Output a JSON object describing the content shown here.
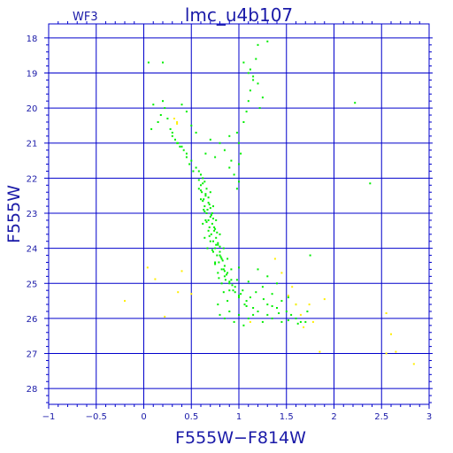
{
  "chart_data": {
    "type": "scatter",
    "title": "lmc_u4b107",
    "subtitle": "WF3",
    "xlabel": "F555W−F814W",
    "ylabel": "F555W",
    "xlim": [
      -1,
      3
    ],
    "ylim": [
      28.45,
      17.6
    ],
    "y_inverted": true,
    "grid": true,
    "x_ticks": [
      {
        "value": -1,
        "label": "−1"
      },
      {
        "value": -0.5,
        "label": "−0.5"
      },
      {
        "value": 0,
        "label": "0"
      },
      {
        "value": 0.5,
        "label": "0.5"
      },
      {
        "value": 1,
        "label": "1"
      },
      {
        "value": 1.5,
        "label": "1.5"
      },
      {
        "value": 2,
        "label": "2"
      },
      {
        "value": 2.5,
        "label": "2.5"
      },
      {
        "value": 3,
        "label": "3"
      }
    ],
    "y_ticks": [
      {
        "value": 18,
        "label": "18"
      },
      {
        "value": 19,
        "label": "19"
      },
      {
        "value": 20,
        "label": "20"
      },
      {
        "value": 21,
        "label": "21"
      },
      {
        "value": 22,
        "label": "22"
      },
      {
        "value": 23,
        "label": "23"
      },
      {
        "value": 24,
        "label": "24"
      },
      {
        "value": 25,
        "label": "25"
      },
      {
        "value": 26,
        "label": "26"
      },
      {
        "value": 27,
        "label": "27"
      },
      {
        "value": 28,
        "label": "28"
      }
    ],
    "colors": {
      "frame": "#0000cc",
      "grid": "#0000cc",
      "text": "#1a1aa8",
      "main": "#00ee00",
      "outlier": "#ffee00"
    },
    "series": [
      {
        "color_key": "main",
        "points": [
          [
            0.62,
            22.0
          ],
          [
            0.64,
            22.1
          ],
          [
            0.6,
            22.2
          ],
          [
            0.66,
            22.3
          ],
          [
            0.61,
            22.4
          ],
          [
            0.65,
            22.5
          ],
          [
            0.63,
            22.6
          ],
          [
            0.68,
            22.7
          ],
          [
            0.64,
            22.8
          ],
          [
            0.67,
            22.9
          ],
          [
            0.66,
            23.0
          ],
          [
            0.7,
            23.1
          ],
          [
            0.68,
            23.2
          ],
          [
            0.72,
            23.3
          ],
          [
            0.69,
            23.4
          ],
          [
            0.74,
            23.5
          ],
          [
            0.71,
            23.6
          ],
          [
            0.76,
            23.7
          ],
          [
            0.73,
            23.8
          ],
          [
            0.78,
            23.9
          ],
          [
            0.75,
            24.0
          ],
          [
            0.8,
            24.1
          ],
          [
            0.77,
            24.2
          ],
          [
            0.82,
            24.3
          ],
          [
            0.79,
            24.4
          ],
          [
            0.85,
            24.5
          ],
          [
            0.82,
            24.6
          ],
          [
            0.88,
            24.7
          ],
          [
            0.85,
            24.8
          ],
          [
            0.92,
            24.9
          ],
          [
            0.9,
            25.0
          ],
          [
            0.96,
            25.1
          ],
          [
            0.94,
            25.2
          ],
          [
            1.02,
            25.3
          ],
          [
            1.0,
            25.4
          ],
          [
            1.08,
            25.5
          ],
          [
            1.06,
            25.6
          ],
          [
            1.15,
            25.7
          ],
          [
            1.2,
            25.8
          ],
          [
            1.3,
            25.9
          ],
          [
            0.58,
            22.3
          ],
          [
            0.6,
            22.6
          ],
          [
            0.63,
            22.9
          ],
          [
            0.65,
            23.2
          ],
          [
            0.68,
            23.5
          ],
          [
            0.7,
            23.8
          ],
          [
            0.73,
            24.1
          ],
          [
            0.75,
            24.4
          ],
          [
            0.78,
            24.7
          ],
          [
            0.82,
            25.0
          ],
          [
            0.7,
            22.4
          ],
          [
            0.73,
            22.8
          ],
          [
            0.76,
            23.2
          ],
          [
            0.8,
            23.6
          ],
          [
            0.84,
            24.0
          ],
          [
            0.88,
            24.3
          ],
          [
            0.92,
            24.6
          ],
          [
            0.98,
            24.9
          ],
          [
            1.04,
            25.2
          ],
          [
            1.12,
            25.4
          ],
          [
            0.55,
            21.7
          ],
          [
            0.5,
            21.5
          ],
          [
            0.45,
            21.3
          ],
          [
            0.4,
            21.1
          ],
          [
            0.35,
            21.0
          ],
          [
            0.3,
            20.8
          ],
          [
            0.28,
            20.6
          ],
          [
            0.25,
            20.3
          ],
          [
            0.22,
            20.0
          ],
          [
            0.2,
            19.8
          ],
          [
            0.52,
            21.8
          ],
          [
            0.48,
            21.6
          ],
          [
            0.42,
            21.2
          ],
          [
            0.38,
            21.1
          ],
          [
            0.33,
            20.9
          ],
          [
            0.6,
            21.9
          ],
          [
            0.58,
            21.8
          ],
          [
            0.45,
            21.4
          ],
          [
            0.36,
            21.0
          ],
          [
            0.3,
            20.7
          ],
          [
            0.95,
            21.9
          ],
          [
            1.0,
            21.6
          ],
          [
            1.02,
            21.3
          ],
          [
            1.0,
            21.0
          ],
          [
            0.98,
            20.7
          ],
          [
            1.05,
            20.4
          ],
          [
            1.08,
            20.1
          ],
          [
            1.1,
            19.8
          ],
          [
            1.12,
            19.5
          ],
          [
            1.15,
            19.2
          ],
          [
            1.1,
            19.0
          ],
          [
            1.15,
            19.1
          ],
          [
            1.2,
            19.3
          ],
          [
            1.18,
            18.6
          ],
          [
            1.12,
            18.9
          ],
          [
            1.22,
            20.0
          ],
          [
            1.25,
            19.7
          ],
          [
            1.3,
            18.1
          ],
          [
            1.2,
            18.2
          ],
          [
            1.05,
            18.7
          ],
          [
            0.9,
            21.7
          ],
          [
            0.92,
            21.5
          ],
          [
            0.85,
            21.2
          ],
          [
            0.8,
            21.0
          ],
          [
            0.75,
            21.4
          ],
          [
            0.7,
            20.9
          ],
          [
            0.65,
            21.3
          ],
          [
            0.9,
            20.8
          ],
          [
            1.0,
            22.1
          ],
          [
            0.98,
            22.3
          ],
          [
            0.05,
            18.7
          ],
          [
            0.2,
            18.7
          ],
          [
            0.1,
            19.9
          ],
          [
            0.18,
            20.2
          ],
          [
            0.15,
            20.4
          ],
          [
            0.08,
            20.6
          ],
          [
            0.4,
            19.9
          ],
          [
            0.45,
            20.1
          ],
          [
            0.55,
            20.7
          ],
          [
            0.5,
            20.5
          ],
          [
            1.3,
            25.6
          ],
          [
            1.4,
            25.7
          ],
          [
            1.5,
            25.8
          ],
          [
            1.55,
            25.9
          ],
          [
            1.6,
            26.0
          ],
          [
            1.65,
            26.1
          ],
          [
            1.7,
            26.1
          ],
          [
            1.35,
            26.0
          ],
          [
            1.45,
            26.1
          ],
          [
            1.25,
            26.1
          ],
          [
            1.0,
            25.9
          ],
          [
            0.9,
            25.8
          ],
          [
            0.85,
            26.0
          ],
          [
            0.95,
            26.1
          ],
          [
            1.1,
            26.0
          ],
          [
            0.8,
            25.9
          ],
          [
            0.78,
            25.6
          ],
          [
            0.88,
            25.5
          ],
          [
            1.15,
            25.9
          ],
          [
            1.05,
            26.2
          ],
          [
            1.2,
            24.6
          ],
          [
            1.3,
            24.8
          ],
          [
            1.4,
            25.0
          ],
          [
            1.25,
            25.1
          ],
          [
            1.35,
            25.3
          ],
          [
            1.75,
            24.2
          ],
          [
            1.45,
            25.5
          ],
          [
            1.52,
            25.4
          ],
          [
            1.6,
            25.6
          ],
          [
            1.72,
            25.8
          ],
          [
            0.72,
            23.0
          ],
          [
            0.74,
            23.4
          ],
          [
            0.76,
            23.9
          ],
          [
            0.8,
            24.2
          ],
          [
            0.84,
            24.6
          ],
          [
            0.86,
            24.9
          ],
          [
            0.9,
            25.2
          ],
          [
            0.62,
            23.3
          ],
          [
            0.64,
            23.7
          ],
          [
            0.67,
            24.0
          ],
          [
            0.62,
            22.15
          ],
          [
            0.65,
            22.45
          ],
          [
            0.69,
            22.75
          ],
          [
            0.71,
            23.05
          ],
          [
            0.75,
            23.45
          ],
          [
            0.78,
            23.85
          ],
          [
            0.81,
            24.25
          ],
          [
            0.85,
            24.65
          ],
          [
            0.9,
            24.95
          ],
          [
            0.96,
            25.25
          ],
          [
            0.58,
            22.05
          ],
          [
            0.6,
            22.35
          ],
          [
            0.62,
            22.65
          ],
          [
            0.64,
            22.95
          ],
          [
            0.66,
            23.25
          ],
          [
            0.69,
            23.65
          ],
          [
            0.72,
            24.05
          ],
          [
            0.75,
            24.45
          ],
          [
            0.79,
            24.85
          ],
          [
            0.84,
            25.25
          ],
          [
            0.68,
            22.55
          ],
          [
            0.7,
            22.85
          ],
          [
            0.73,
            23.15
          ],
          [
            0.77,
            23.55
          ],
          [
            0.8,
            23.95
          ],
          [
            0.83,
            24.35
          ],
          [
            0.87,
            24.75
          ],
          [
            0.93,
            25.05
          ],
          [
            1.0,
            25.35
          ],
          [
            1.08,
            25.65
          ],
          [
            2.22,
            19.85
          ],
          [
            2.38,
            22.15
          ],
          [
            1.0,
            24.55
          ],
          [
            1.1,
            24.95
          ],
          [
            1.18,
            25.25
          ],
          [
            1.26,
            25.45
          ],
          [
            1.35,
            25.65
          ],
          [
            1.42,
            25.85
          ],
          [
            1.52,
            26.05
          ],
          [
            1.62,
            26.15
          ]
        ]
      },
      {
        "color_key": "outlier",
        "points": [
          [
            0.32,
            20.3
          ],
          [
            0.35,
            20.4
          ],
          [
            0.35,
            20.45
          ],
          [
            0.04,
            24.55
          ],
          [
            0.12,
            24.88
          ],
          [
            0.4,
            24.65
          ],
          [
            -0.2,
            25.5
          ],
          [
            0.36,
            25.25
          ],
          [
            0.22,
            25.95
          ],
          [
            0.5,
            25.3
          ],
          [
            1.12,
            26.1
          ],
          [
            1.38,
            24.3
          ],
          [
            1.45,
            24.7
          ],
          [
            1.56,
            25.1
          ],
          [
            1.52,
            25.35
          ],
          [
            1.6,
            25.6
          ],
          [
            1.65,
            25.9
          ],
          [
            1.74,
            25.6
          ],
          [
            1.78,
            26.1
          ],
          [
            1.68,
            26.25
          ],
          [
            1.9,
            25.45
          ],
          [
            1.85,
            26.95
          ],
          [
            2.55,
            25.85
          ],
          [
            2.6,
            26.45
          ],
          [
            2.65,
            26.95
          ],
          [
            2.55,
            27.0
          ],
          [
            2.84,
            27.3
          ],
          [
            1.95,
            28.75
          ]
        ]
      }
    ]
  }
}
